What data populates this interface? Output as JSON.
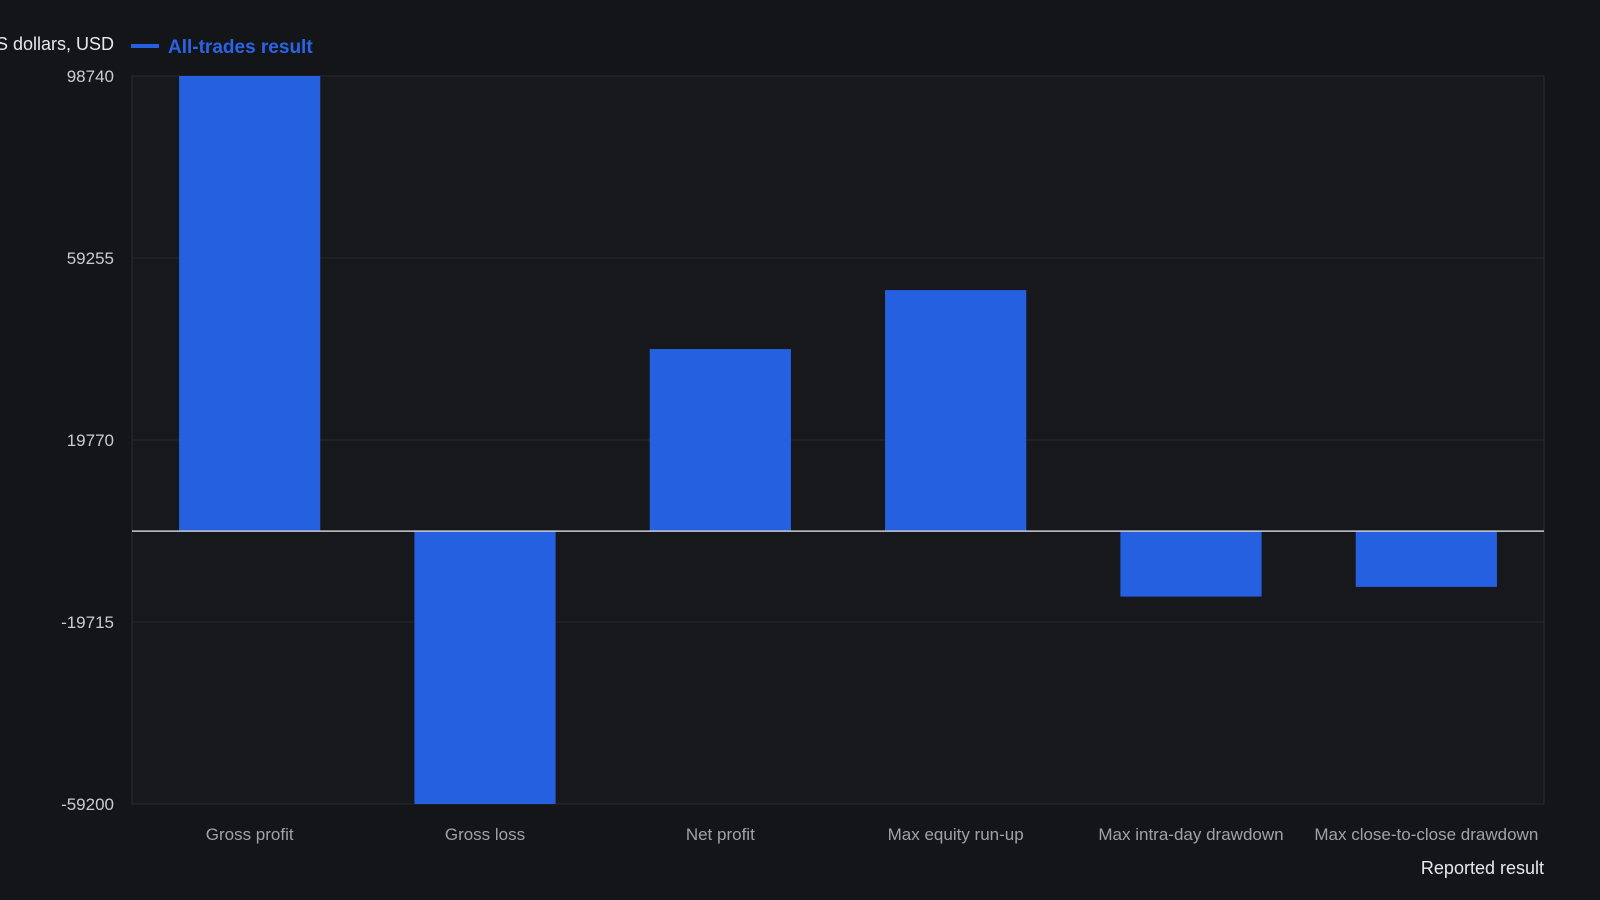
{
  "chart_data": {
    "type": "bar",
    "title": "",
    "ylabel": "US dollars, USD",
    "xlabel": "Reported result",
    "categories": [
      "Gross profit",
      "Gross loss",
      "Net profit",
      "Max equity run-up",
      "Max intra-day drawdown",
      "Max close-to-close drawdown"
    ],
    "series": [
      {
        "name": "All-trades result",
        "color": "#2560e0",
        "values": [
          98740,
          -59200,
          39500,
          52300,
          -14200,
          -12100
        ]
      }
    ],
    "yticks": [
      98740,
      59255,
      19770,
      -19715,
      -59200
    ],
    "ylim": [
      -59200,
      98740
    ],
    "grid": true,
    "legend_position": "top-left"
  }
}
